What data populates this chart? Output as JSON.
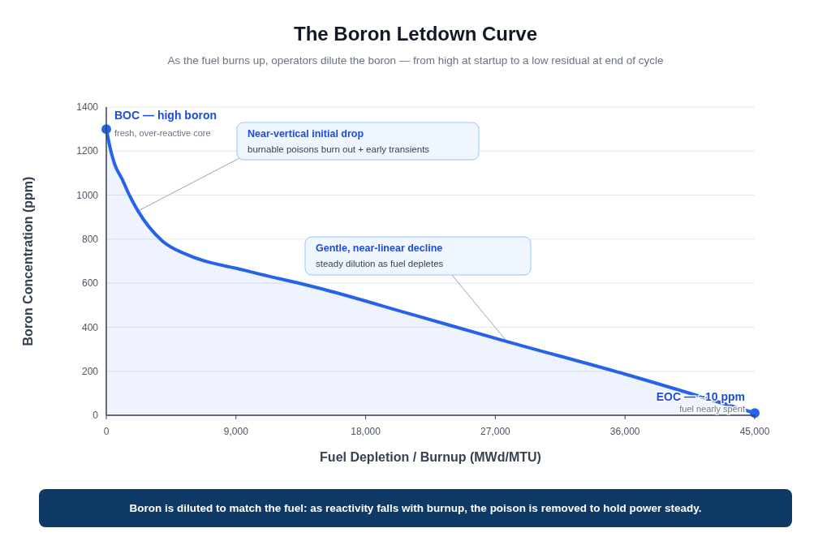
{
  "chart_data": {
    "type": "area",
    "title": "The Boron Letdown Curve",
    "subtitle": "As the fuel burns up, operators dilute the boron — from high at startup to a low residual at end of cycle",
    "xlabel": "Fuel Depletion / Burnup (MWd/MTU)",
    "ylabel": "Boron Concentration (ppm)",
    "xlim": [
      0,
      45000
    ],
    "xticks": [
      {
        "value": 0,
        "label": "0"
      },
      {
        "value": 9000,
        "label": "9,000"
      },
      {
        "value": 18000,
        "label": "18,000"
      },
      {
        "value": 27000,
        "label": "27,000"
      },
      {
        "value": 36000,
        "label": "36,000"
      },
      {
        "value": 45000,
        "label": "45,000"
      }
    ],
    "ylim": [
      0,
      1400
    ],
    "yticks": [
      0,
      200,
      400,
      600,
      800,
      1000,
      1200,
      1400
    ],
    "grid": "y",
    "series": [
      {
        "color": "#2563eb",
        "x": [
          0,
          320,
          600,
          1070,
          1630,
          2200,
          3880,
          5740,
          9510,
          15140,
          21000,
          27800,
          36000,
          45000
        ],
        "values": [
          1300,
          1199,
          1137,
          1076,
          996,
          928,
          792,
          726,
          660,
          571,
          462,
          335,
          187,
          10
        ]
      },
      {
        "type": "scatter",
        "color": "#2563eb",
        "marker": "circle",
        "x": [
          0,
          45000
        ],
        "values": [
          1300,
          10
        ]
      }
    ],
    "annotations": [
      "BOC — high boron",
      "fresh, over-reactive core",
      "Near-vertical initial drop",
      {
        "text": "burnable poisons burn out + early transients",
        "x": 2200,
        "y": 928
      },
      "Gentle, near-linear decline",
      {
        "text": "steady dilution as fuel depletes",
        "x": 27800,
        "y": 335
      },
      "EOC — ~10 ppm",
      "fuel nearly spent",
      "Boron is diluted to match the fuel: as reactivity falls with burnup, the poison is removed to hold power steady."
    ]
  }
}
